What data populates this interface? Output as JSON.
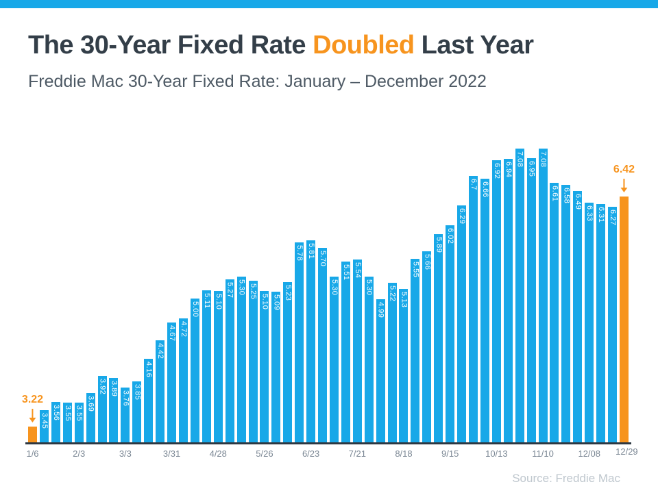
{
  "banner": {
    "color": "#18A8E8"
  },
  "header": {
    "title_prefix": "The 30-Year Fixed Rate ",
    "title_highlight": "Doubled",
    "title_suffix": " Last Year",
    "subtitle": "Freddie Mac 30-Year Fixed Rate: January – December 2022"
  },
  "chart_data": {
    "type": "bar",
    "title": "The 30-Year Fixed Rate Doubled Last Year",
    "subtitle": "Freddie Mac 30-Year Fixed Rate: January – December 2022",
    "ylim": [
      3.0,
      7.15
    ],
    "grid": false,
    "legend": false,
    "values": [
      3.22,
      3.45,
      3.56,
      3.55,
      3.55,
      3.69,
      3.92,
      3.89,
      3.76,
      3.85,
      4.16,
      4.42,
      4.67,
      4.72,
      5.0,
      5.11,
      5.1,
      5.27,
      5.3,
      5.25,
      5.1,
      5.09,
      5.23,
      5.78,
      5.81,
      5.7,
      5.3,
      5.51,
      5.54,
      5.3,
      4.99,
      5.22,
      5.13,
      5.55,
      5.66,
      5.89,
      6.02,
      6.29,
      6.7,
      6.66,
      6.92,
      6.94,
      7.08,
      6.95,
      7.08,
      6.61,
      6.58,
      6.49,
      6.33,
      6.31,
      6.27,
      6.42
    ],
    "value_labels": [
      "3.22",
      "3.45",
      "3.56",
      "3.55",
      "3.55",
      "3.69",
      "3.92",
      "3.89",
      "3.76",
      "3.85",
      "4.16",
      "4.42",
      "4.67",
      "4.72",
      "5.00",
      "5.11",
      "5.10",
      "5.27",
      "5.30",
      "5.25",
      "5.10",
      "5.09",
      "5.23",
      "5.78",
      "5.81",
      "5.70",
      "5.30",
      "5.51",
      "5.54",
      "5.30",
      "4.99",
      "5.22",
      "5.13",
      "5.55",
      "5.66",
      "5.89",
      "6.02",
      "6.29",
      "6.7",
      "6.66",
      "6.92",
      "6.94",
      "7.08",
      "6.95",
      "7.08",
      "6.61",
      "6.58",
      "6.49",
      "6.33",
      "6.31",
      "6.27",
      "6.42"
    ],
    "highlight_indexes": [
      0,
      51
    ],
    "x_ticks": [
      {
        "index": 0,
        "label": "1/6"
      },
      {
        "index": 4,
        "label": "2/3"
      },
      {
        "index": 8,
        "label": "3/3"
      },
      {
        "index": 12,
        "label": "3/31"
      },
      {
        "index": 16,
        "label": "4/28"
      },
      {
        "index": 20,
        "label": "5/26"
      },
      {
        "index": 24,
        "label": "6/23"
      },
      {
        "index": 28,
        "label": "7/21"
      },
      {
        "index": 32,
        "label": "8/18"
      },
      {
        "index": 36,
        "label": "9/15"
      },
      {
        "index": 40,
        "label": "10/13"
      },
      {
        "index": 44,
        "label": "11/10"
      },
      {
        "index": 48,
        "label": "12/08"
      },
      {
        "index": 51,
        "label": "12/29"
      }
    ],
    "annotations": [
      {
        "index": 0,
        "text": "3.22"
      },
      {
        "index": 51,
        "text": "6.42"
      }
    ],
    "colors": {
      "bar": "#18A8E8",
      "highlight": "#F7941E",
      "value_label": "#FFFFFF",
      "annotation": "#F7941E"
    }
  },
  "footer": {
    "source": "Source: Freddie Mac"
  }
}
